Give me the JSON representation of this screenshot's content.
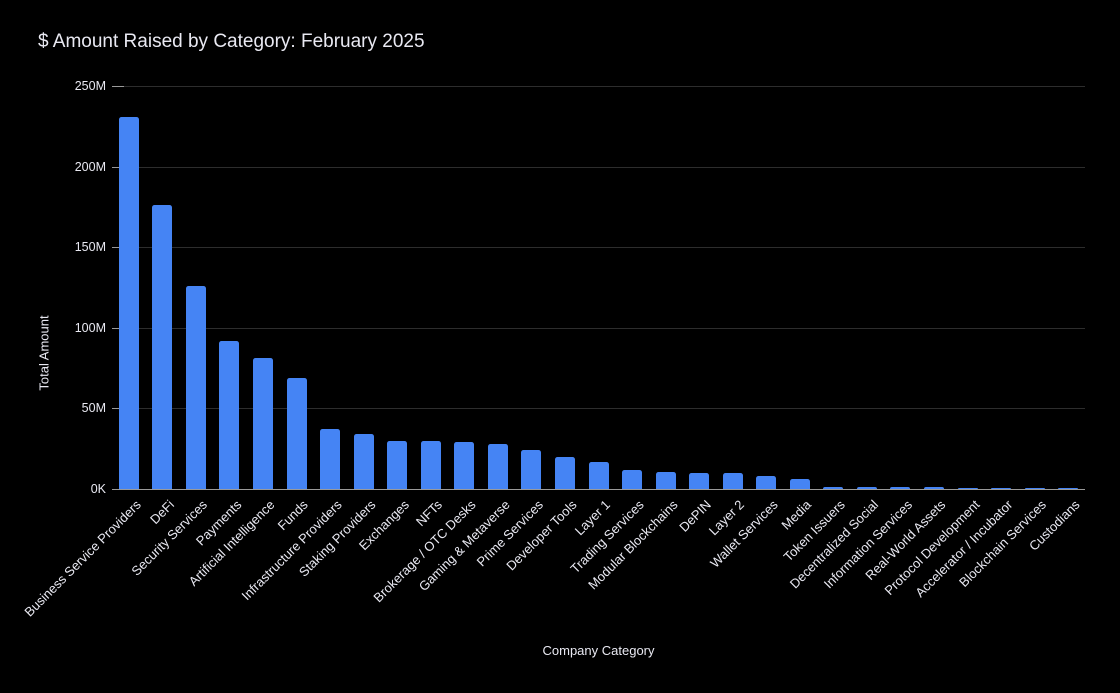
{
  "page": {
    "background": "#000000",
    "text_color": "#E9E9F2"
  },
  "chart_data": {
    "type": "bar",
    "title": "$ Amount Raised by Category: February 2025",
    "xlabel": "Company Category",
    "ylabel": "Total Amount",
    "unit": "USD millions",
    "ylim": [
      0,
      250
    ],
    "grid": true,
    "legend": "none",
    "bar_color": "#4584F4",
    "grid_color": "#2D2D2D",
    "axis_color": "#9A9A9A",
    "ytick_values": [
      0,
      50,
      100,
      150,
      200,
      250
    ],
    "ytick_labels": [
      "0K",
      "50M",
      "100M",
      "150M",
      "200M",
      "250M"
    ],
    "categories": [
      "Business Service Providers",
      "DeFi",
      "Security Services",
      "Payments",
      "Artificial Intelligence",
      "Funds",
      "Infrastructure Providers",
      "Staking Providers",
      "Exchanges",
      "NFTs",
      "Brokerage / OTC Desks",
      "Gaming & Metaverse",
      "Prime Services",
      "Developer Tools",
      "Layer 1",
      "Trading Services",
      "Modular Blockchains",
      "DePIN",
      "Layer 2",
      "Wallet Services",
      "Media",
      "Token Issuers",
      "Decentralized Social",
      "Information Services",
      "Real-World Assets",
      "Protocol Development",
      "Accelerator / Incubator",
      "Blockchain Services",
      "Custodians"
    ],
    "values": [
      231,
      176,
      126,
      92,
      81,
      69,
      37,
      34,
      30,
      29.5,
      29,
      28,
      24,
      20,
      17,
      12,
      10.5,
      10,
      10,
      8,
      6,
      1.5,
      1.2,
      1.2,
      1.2,
      0.8,
      0.2,
      0.1,
      0.05
    ]
  }
}
